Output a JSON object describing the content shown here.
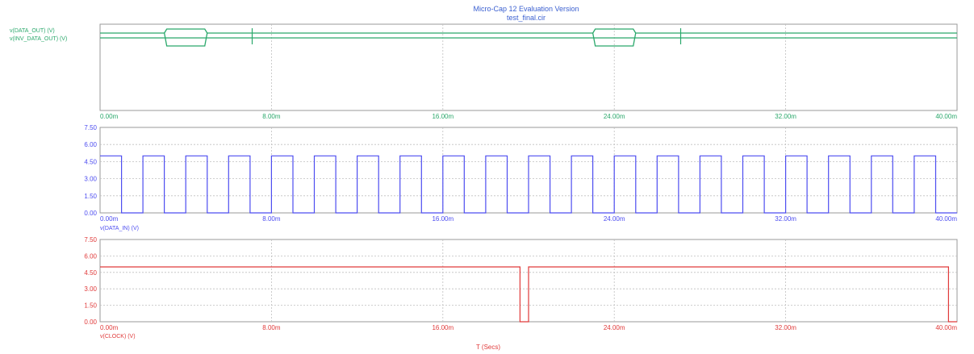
{
  "header": {
    "title": "Micro-Cap 12 Evaluation Version",
    "filename": "test_final.cir",
    "x_axis_label": "T (Secs)"
  },
  "colors": {
    "panel1": "#2aa86b",
    "panel2": "#4d4df0",
    "panel3": "#e03a3a",
    "grid": "#bfbfbf",
    "frame": "#9a9a9a"
  },
  "chart_data": [
    {
      "type": "line",
      "name": "digital-state-plot",
      "x_unit": "ms",
      "xlim": [
        0,
        40
      ],
      "x_tick_labels": [
        "0.00m",
        "8.00m",
        "16.00m",
        "24.00m",
        "32.00m",
        "40.00m"
      ],
      "grid": true,
      "series": [
        {
          "name": "v(DATA_OUT) (V)",
          "kind": "digital-bus",
          "transitions": [
            {
              "x": 0,
              "state": "hi"
            },
            {
              "x": 3.0,
              "state": "x"
            },
            {
              "x": 5.0,
              "state": "hi"
            },
            {
              "x": 7.1,
              "state": "glitch"
            },
            {
              "x": 23.0,
              "state": "x"
            },
            {
              "x": 25.0,
              "state": "hi"
            },
            {
              "x": 27.1,
              "state": "glitch"
            },
            {
              "x": 40,
              "state": "hi"
            }
          ]
        },
        {
          "name": "v(INV_DATA_OUT) (V)",
          "kind": "digital",
          "transitions": []
        }
      ]
    },
    {
      "type": "line",
      "name": "data-in-plot",
      "x_unit": "ms",
      "xlim": [
        0,
        40
      ],
      "ylim": [
        0,
        7.5
      ],
      "x_tick_labels": [
        "0.00m",
        "8.00m",
        "16.00m",
        "24.00m",
        "32.00m",
        "40.00m"
      ],
      "y_tick_labels": [
        "0.00",
        "1.50",
        "3.00",
        "4.50",
        "6.00",
        "7.50"
      ],
      "grid": true,
      "series": [
        {
          "name": "v(DATA_IN) (V)",
          "kind": "square",
          "period": 2.0,
          "first_rise": 2.0,
          "pulse_width": 1.0,
          "high": 5,
          "low": 0,
          "start_high_until": 1.0,
          "end": 40
        }
      ]
    },
    {
      "type": "line",
      "name": "clock-plot",
      "x_unit": "ms",
      "xlim": [
        0,
        40
      ],
      "ylim": [
        0,
        7.5
      ],
      "x_tick_labels": [
        "0.00m",
        "8.00m",
        "16.00m",
        "24.00m",
        "32.00m",
        "40.00m"
      ],
      "y_tick_labels": [
        "0.00",
        "1.50",
        "3.00",
        "4.50",
        "6.00",
        "7.50"
      ],
      "grid": true,
      "series": [
        {
          "name": "v(CLOCK) (V)",
          "kind": "steps",
          "points": [
            [
              0,
              5
            ],
            [
              19.6,
              5
            ],
            [
              19.6,
              0
            ],
            [
              20.0,
              0
            ],
            [
              20.0,
              5
            ],
            [
              39.6,
              5
            ],
            [
              39.6,
              0
            ],
            [
              40,
              0
            ]
          ]
        }
      ]
    }
  ]
}
